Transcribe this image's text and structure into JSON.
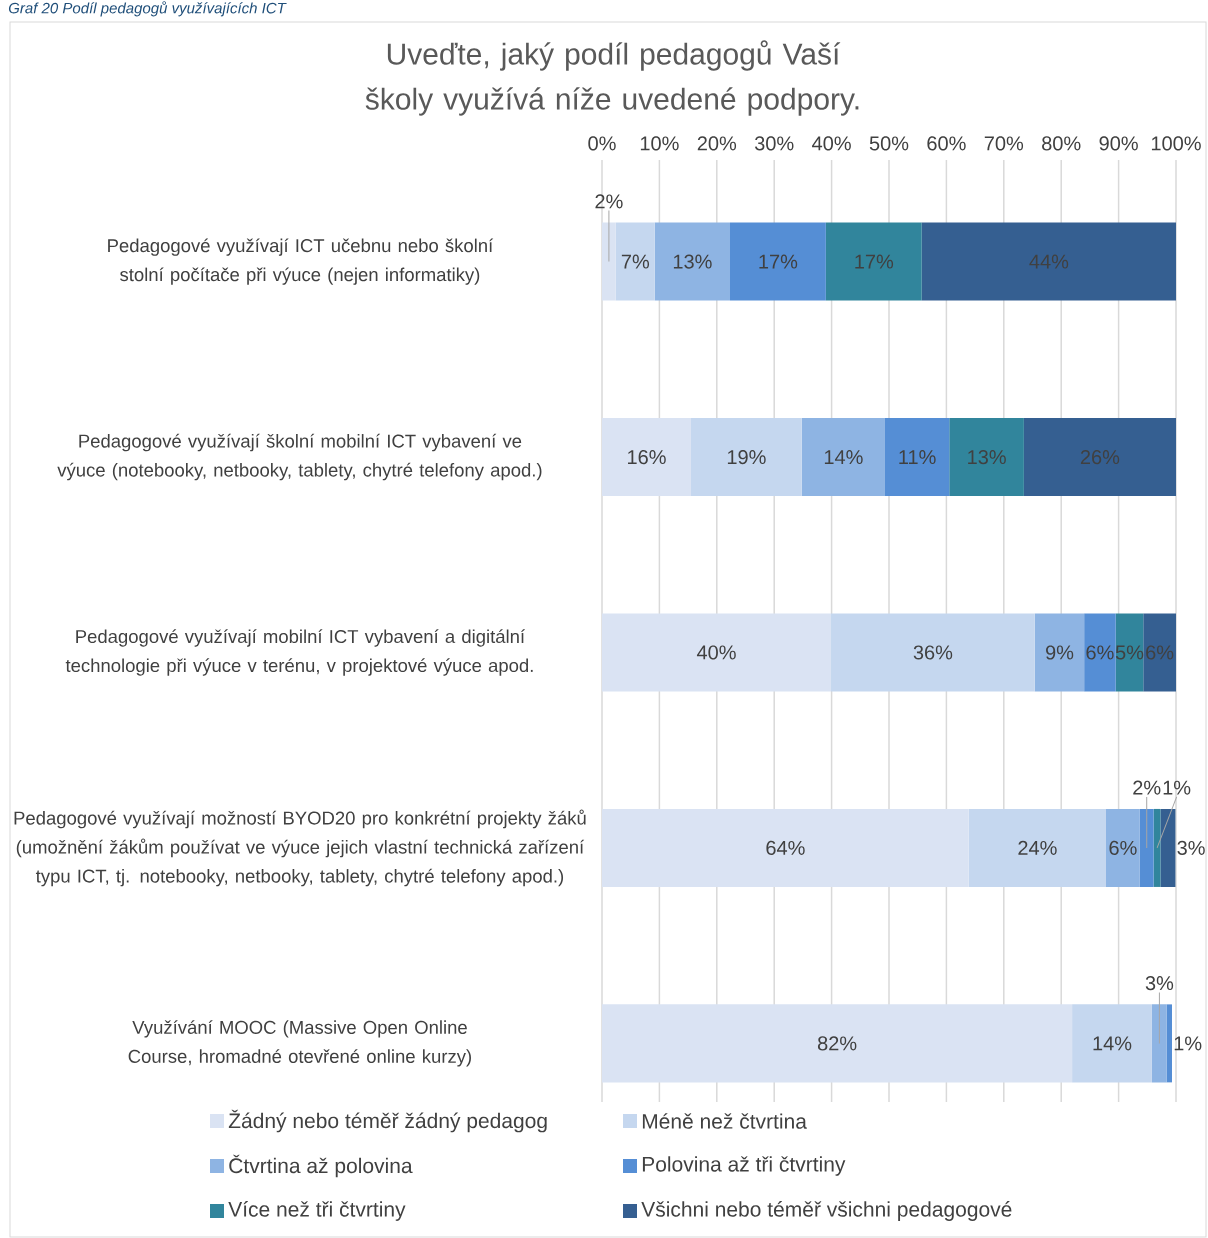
{
  "chart_data": {
    "type": "bar",
    "orientation": "horizontal",
    "stacked": true,
    "title": "Uveďte, jaký podíl pedagogů Vaší školy využívá níže uvedené podpory.",
    "annotations": [
      "Graf 20 Podíl pedagogů využívajících ICT"
    ],
    "categories": [
      "Pedagogové využívají ICT učebnu nebo školní stolní počítače při výuce (nejen informatiky)",
      "Pedagogové využívají školní mobilní ICT vybavení ve výuce (notebooky, netbooky, tablety, chytré telefony apod.)",
      "Pedagogové využívají mobilní ICT vybavení a digitální technologie při výuce v terénu, v projektové výuce apod.",
      "Pedagogové využívají možností BYOD20 pro konkrétní projekty žáků (umožnění žákům používat ve výuce jejich vlastní technická zařízení typu ICT, tj. notebooky, netbooky, tablety, chytré telefony apod.)",
      "Využívání MOOC (Massive Open Online Course, hromadné otevřené online kurzy)"
    ],
    "series": [
      {
        "name": "Žádný nebo téměř žádný pedagog",
        "color": "#dae3f3",
        "values": [
          2.4,
          15.5,
          39.9,
          63.9,
          81.9
        ],
        "value_labels": [
          "2%",
          "16%",
          "40%",
          "64%",
          "82%"
        ]
      },
      {
        "name": "Méně než čtvrtina",
        "color": "#c5d7ef",
        "values": [
          6.8,
          19.3,
          35.5,
          23.9,
          13.9
        ],
        "value_labels": [
          "7%",
          "19%",
          "36%",
          "24%",
          "14%"
        ]
      },
      {
        "name": "Čtvrtina až polovina",
        "color": "#8eb4e3",
        "values": [
          13.1,
          14.5,
          8.6,
          5.9,
          2.6
        ],
        "value_labels": [
          "13%",
          "14%",
          "9%",
          "6%",
          "3%"
        ]
      },
      {
        "name": "Polovina až tři čtvrtiny",
        "color": "#558ed5",
        "values": [
          16.7,
          11.2,
          5.5,
          2.4,
          0.9
        ],
        "value_labels": [
          "17%",
          "11%",
          "6%",
          "2%",
          "1%"
        ]
      },
      {
        "name": "Více než tři čtvrtiny",
        "color": "#31859c",
        "values": [
          16.7,
          13.0,
          4.8,
          1.2,
          null
        ],
        "value_labels": [
          "17%",
          "13%",
          "5%",
          "1%",
          null
        ]
      },
      {
        "name": "Všichni nebo téměř všichni pedagogové",
        "color": "#355f91",
        "values": [
          44.3,
          26.5,
          5.7,
          2.6,
          null
        ],
        "value_labels": [
          "44%",
          "26%",
          "6%",
          "3%",
          null
        ]
      }
    ],
    "xlim": [
      0,
      100
    ],
    "xticks": [
      {
        "value": 0,
        "label": "0%"
      },
      {
        "value": 10,
        "label": "10%"
      },
      {
        "value": 20,
        "label": "20%"
      },
      {
        "value": 30,
        "label": "30%"
      },
      {
        "value": 40,
        "label": "40%"
      },
      {
        "value": 50,
        "label": "50%"
      },
      {
        "value": 60,
        "label": "60%"
      },
      {
        "value": 70,
        "label": "70%"
      },
      {
        "value": 80,
        "label": "80%"
      },
      {
        "value": 90,
        "label": "90%"
      },
      {
        "value": 100,
        "label": "100%"
      }
    ],
    "grid": "x",
    "legend": "bottom"
  }
}
